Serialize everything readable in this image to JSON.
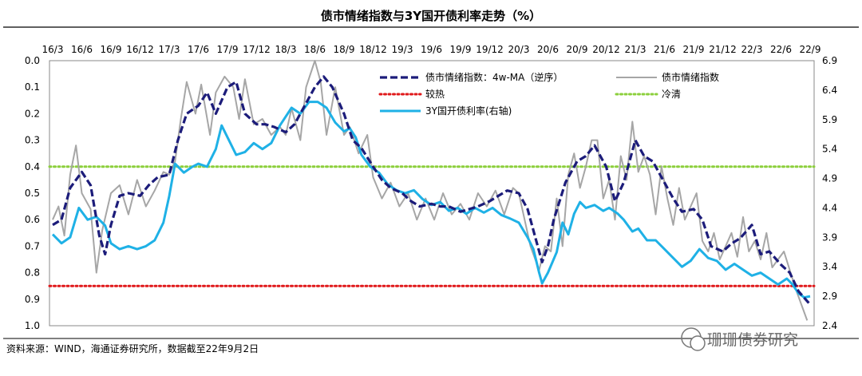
{
  "chart_data": {
    "type": "line",
    "title": "债市情绪指数与3Y国开债利率走势（%）",
    "source": "资料来源：WIND，海通证券研究所，数据截至22年9月2日",
    "watermark": "珊珊债券研究",
    "x_tick_labels": [
      "16/3",
      "16/6",
      "16/9",
      "16/12",
      "17/3",
      "17/6",
      "17/9",
      "17/12",
      "18/3",
      "18/6",
      "18/9",
      "18/12",
      "19/3",
      "19/6",
      "19/9",
      "19/12",
      "20/3",
      "20/6",
      "20/9",
      "20/12",
      "21/3",
      "21/6",
      "21/9",
      "21/12",
      "22/3",
      "22/6",
      "22/9"
    ],
    "left_axis": {
      "min": 0.0,
      "max": 1.0,
      "reversed": true,
      "tick_labels": [
        "0.0",
        "0.1",
        "0.2",
        "0.3",
        "0.4",
        "0.5",
        "0.6",
        "0.7",
        "0.8",
        "0.9",
        "1.0"
      ]
    },
    "right_axis": {
      "min": 2.4,
      "max": 6.9,
      "tick_labels": [
        "2.4",
        "2.9",
        "3.4",
        "3.9",
        "4.4",
        "4.9",
        "5.4",
        "5.9",
        "6.4",
        "6.9"
      ]
    },
    "legend": {
      "ma": "债市情绪指数：4w-MA（逆序）",
      "raw": "债市情绪指数",
      "hot": "较热",
      "cold": "冷清",
      "rate": "3Y国开债利率(右轴)"
    },
    "reference_lines": {
      "hot": 0.85,
      "cold": 0.4
    },
    "colors": {
      "ma": "#1c1c7a",
      "raw": "#a6a6a6",
      "hot": "#e0191b",
      "cold": "#8ccf3c",
      "rate": "#1fb1e6"
    },
    "series_ma": {
      "axis": "left",
      "points": [
        [
          0.0,
          0.62
        ],
        [
          0.3,
          0.6
        ],
        [
          0.6,
          0.48
        ],
        [
          1.0,
          0.42
        ],
        [
          1.3,
          0.47
        ],
        [
          1.6,
          0.66
        ],
        [
          1.8,
          0.73
        ],
        [
          2.0,
          0.62
        ],
        [
          2.3,
          0.51
        ],
        [
          2.6,
          0.5
        ],
        [
          3.0,
          0.51
        ],
        [
          3.3,
          0.47
        ],
        [
          3.6,
          0.44
        ],
        [
          4.0,
          0.43
        ],
        [
          4.3,
          0.3
        ],
        [
          4.6,
          0.2
        ],
        [
          5.0,
          0.17
        ],
        [
          5.3,
          0.12
        ],
        [
          5.6,
          0.2
        ],
        [
          6.0,
          0.1
        ],
        [
          6.3,
          0.08
        ],
        [
          6.6,
          0.2
        ],
        [
          7.0,
          0.24
        ],
        [
          7.3,
          0.24
        ],
        [
          7.6,
          0.25
        ],
        [
          8.0,
          0.27
        ],
        [
          8.3,
          0.24
        ],
        [
          8.6,
          0.18
        ],
        [
          9.0,
          0.1
        ],
        [
          9.3,
          0.06
        ],
        [
          9.6,
          0.1
        ],
        [
          10.0,
          0.2
        ],
        [
          10.3,
          0.3
        ],
        [
          10.6,
          0.33
        ],
        [
          11.0,
          0.4
        ],
        [
          11.3,
          0.45
        ],
        [
          11.6,
          0.48
        ],
        [
          12.0,
          0.5
        ],
        [
          12.3,
          0.53
        ],
        [
          12.6,
          0.55
        ],
        [
          13.0,
          0.54
        ],
        [
          13.3,
          0.55
        ],
        [
          13.6,
          0.55
        ],
        [
          14.0,
          0.57
        ],
        [
          14.3,
          0.56
        ],
        [
          14.6,
          0.55
        ],
        [
          15.0,
          0.53
        ],
        [
          15.3,
          0.51
        ],
        [
          15.6,
          0.49
        ],
        [
          16.0,
          0.5
        ],
        [
          16.3,
          0.56
        ],
        [
          16.6,
          0.68
        ],
        [
          16.8,
          0.76
        ],
        [
          17.0,
          0.7
        ],
        [
          17.2,
          0.6
        ],
        [
          17.6,
          0.46
        ],
        [
          18.0,
          0.38
        ],
        [
          18.3,
          0.36
        ],
        [
          18.6,
          0.32
        ],
        [
          19.0,
          0.4
        ],
        [
          19.3,
          0.53
        ],
        [
          19.6,
          0.46
        ],
        [
          20.0,
          0.3
        ],
        [
          20.3,
          0.36
        ],
        [
          20.6,
          0.38
        ],
        [
          21.0,
          0.46
        ],
        [
          21.3,
          0.52
        ],
        [
          21.6,
          0.57
        ],
        [
          22.0,
          0.56
        ],
        [
          22.3,
          0.6
        ],
        [
          22.6,
          0.7
        ],
        [
          23.0,
          0.72
        ],
        [
          23.3,
          0.69
        ],
        [
          23.6,
          0.67
        ],
        [
          24.0,
          0.62
        ],
        [
          24.3,
          0.73
        ],
        [
          24.6,
          0.72
        ],
        [
          25.0,
          0.77
        ],
        [
          25.3,
          0.8
        ],
        [
          25.6,
          0.87
        ],
        [
          26.0,
          0.92
        ]
      ]
    },
    "series_raw": {
      "axis": "left",
      "points": [
        [
          0.0,
          0.6
        ],
        [
          0.2,
          0.55
        ],
        [
          0.4,
          0.66
        ],
        [
          0.6,
          0.43
        ],
        [
          0.8,
          0.32
        ],
        [
          1.0,
          0.5
        ],
        [
          1.3,
          0.56
        ],
        [
          1.5,
          0.8
        ],
        [
          1.7,
          0.64
        ],
        [
          2.0,
          0.5
        ],
        [
          2.3,
          0.47
        ],
        [
          2.6,
          0.58
        ],
        [
          2.9,
          0.45
        ],
        [
          3.2,
          0.55
        ],
        [
          3.5,
          0.49
        ],
        [
          3.8,
          0.42
        ],
        [
          4.0,
          0.43
        ],
        [
          4.2,
          0.38
        ],
        [
          4.4,
          0.22
        ],
        [
          4.6,
          0.08
        ],
        [
          4.9,
          0.2
        ],
        [
          5.1,
          0.09
        ],
        [
          5.4,
          0.28
        ],
        [
          5.6,
          0.12
        ],
        [
          5.9,
          0.06
        ],
        [
          6.2,
          0.1
        ],
        [
          6.4,
          0.22
        ],
        [
          6.6,
          0.07
        ],
        [
          6.9,
          0.24
        ],
        [
          7.2,
          0.22
        ],
        [
          7.5,
          0.28
        ],
        [
          7.8,
          0.25
        ],
        [
          8.0,
          0.28
        ],
        [
          8.2,
          0.18
        ],
        [
          8.5,
          0.3
        ],
        [
          8.7,
          0.1
        ],
        [
          9.0,
          0.0
        ],
        [
          9.2,
          0.08
        ],
        [
          9.4,
          0.28
        ],
        [
          9.7,
          0.1
        ],
        [
          10.0,
          0.28
        ],
        [
          10.2,
          0.25
        ],
        [
          10.5,
          0.35
        ],
        [
          10.8,
          0.28
        ],
        [
          11.0,
          0.44
        ],
        [
          11.3,
          0.52
        ],
        [
          11.6,
          0.46
        ],
        [
          11.9,
          0.55
        ],
        [
          12.2,
          0.5
        ],
        [
          12.5,
          0.6
        ],
        [
          12.8,
          0.52
        ],
        [
          13.1,
          0.6
        ],
        [
          13.4,
          0.5
        ],
        [
          13.7,
          0.58
        ],
        [
          14.0,
          0.54
        ],
        [
          14.3,
          0.6
        ],
        [
          14.6,
          0.5
        ],
        [
          14.9,
          0.55
        ],
        [
          15.2,
          0.49
        ],
        [
          15.5,
          0.58
        ],
        [
          15.8,
          0.48
        ],
        [
          16.0,
          0.5
        ],
        [
          16.2,
          0.6
        ],
        [
          16.4,
          0.7
        ],
        [
          16.7,
          0.79
        ],
        [
          16.9,
          0.7
        ],
        [
          17.1,
          0.72
        ],
        [
          17.3,
          0.52
        ],
        [
          17.5,
          0.7
        ],
        [
          17.7,
          0.43
        ],
        [
          17.9,
          0.35
        ],
        [
          18.1,
          0.48
        ],
        [
          18.3,
          0.4
        ],
        [
          18.5,
          0.3
        ],
        [
          18.7,
          0.3
        ],
        [
          18.9,
          0.52
        ],
        [
          19.1,
          0.45
        ],
        [
          19.3,
          0.6
        ],
        [
          19.5,
          0.36
        ],
        [
          19.7,
          0.45
        ],
        [
          19.9,
          0.23
        ],
        [
          20.1,
          0.42
        ],
        [
          20.3,
          0.36
        ],
        [
          20.5,
          0.43
        ],
        [
          20.7,
          0.58
        ],
        [
          20.9,
          0.4
        ],
        [
          21.1,
          0.52
        ],
        [
          21.3,
          0.62
        ],
        [
          21.5,
          0.48
        ],
        [
          21.7,
          0.6
        ],
        [
          21.9,
          0.55
        ],
        [
          22.1,
          0.5
        ],
        [
          22.3,
          0.68
        ],
        [
          22.5,
          0.72
        ],
        [
          22.7,
          0.65
        ],
        [
          22.9,
          0.75
        ],
        [
          23.1,
          0.7
        ],
        [
          23.3,
          0.65
        ],
        [
          23.5,
          0.74
        ],
        [
          23.7,
          0.59
        ],
        [
          23.9,
          0.72
        ],
        [
          24.1,
          0.68
        ],
        [
          24.3,
          0.75
        ],
        [
          24.5,
          0.65
        ],
        [
          24.7,
          0.78
        ],
        [
          24.9,
          0.75
        ],
        [
          25.1,
          0.72
        ],
        [
          25.3,
          0.79
        ],
        [
          25.5,
          0.86
        ],
        [
          25.7,
          0.92
        ],
        [
          25.9,
          0.98
        ]
      ]
    },
    "series_rate": {
      "axis": "right",
      "points": [
        [
          0.0,
          3.95
        ],
        [
          0.3,
          3.8
        ],
        [
          0.6,
          3.9
        ],
        [
          0.9,
          4.4
        ],
        [
          1.2,
          4.2
        ],
        [
          1.5,
          4.25
        ],
        [
          1.8,
          4.1
        ],
        [
          2.0,
          3.8
        ],
        [
          2.3,
          3.7
        ],
        [
          2.6,
          3.75
        ],
        [
          2.9,
          3.7
        ],
        [
          3.2,
          3.75
        ],
        [
          3.5,
          3.85
        ],
        [
          3.8,
          4.15
        ],
        [
          4.0,
          4.6
        ],
        [
          4.2,
          5.15
        ],
        [
          4.5,
          5.0
        ],
        [
          4.8,
          5.1
        ],
        [
          5.0,
          5.15
        ],
        [
          5.3,
          5.1
        ],
        [
          5.6,
          5.4
        ],
        [
          5.8,
          5.8
        ],
        [
          6.0,
          5.6
        ],
        [
          6.3,
          5.3
        ],
        [
          6.6,
          5.35
        ],
        [
          6.9,
          5.5
        ],
        [
          7.2,
          5.4
        ],
        [
          7.5,
          5.5
        ],
        [
          7.8,
          5.8
        ],
        [
          8.0,
          5.95
        ],
        [
          8.2,
          6.1
        ],
        [
          8.5,
          6.0
        ],
        [
          8.8,
          6.2
        ],
        [
          9.1,
          6.2
        ],
        [
          9.4,
          6.1
        ],
        [
          9.7,
          5.85
        ],
        [
          10.0,
          5.7
        ],
        [
          10.2,
          5.75
        ],
        [
          10.4,
          5.6
        ],
        [
          10.6,
          5.3
        ],
        [
          10.9,
          5.1
        ],
        [
          11.2,
          5.0
        ],
        [
          11.5,
          4.8
        ],
        [
          11.8,
          4.7
        ],
        [
          12.1,
          4.65
        ],
        [
          12.4,
          4.7
        ],
        [
          12.7,
          4.55
        ],
        [
          13.0,
          4.45
        ],
        [
          13.3,
          4.5
        ],
        [
          13.6,
          4.35
        ],
        [
          13.9,
          4.4
        ],
        [
          14.2,
          4.3
        ],
        [
          14.5,
          4.4
        ],
        [
          14.8,
          4.32
        ],
        [
          15.1,
          4.4
        ],
        [
          15.4,
          4.28
        ],
        [
          15.7,
          4.22
        ],
        [
          16.0,
          4.15
        ],
        [
          16.3,
          3.9
        ],
        [
          16.5,
          3.7
        ],
        [
          16.7,
          3.3
        ],
        [
          16.8,
          3.12
        ],
        [
          17.0,
          3.3
        ],
        [
          17.3,
          3.65
        ],
        [
          17.5,
          4.15
        ],
        [
          17.7,
          3.95
        ],
        [
          17.9,
          4.3
        ],
        [
          18.1,
          4.5
        ],
        [
          18.3,
          4.4
        ],
        [
          18.6,
          4.45
        ],
        [
          18.9,
          4.35
        ],
        [
          19.1,
          4.4
        ],
        [
          19.4,
          4.3
        ],
        [
          19.6,
          4.2
        ],
        [
          19.9,
          4.0
        ],
        [
          20.1,
          4.05
        ],
        [
          20.4,
          3.85
        ],
        [
          20.7,
          3.85
        ],
        [
          21.0,
          3.7
        ],
        [
          21.3,
          3.55
        ],
        [
          21.6,
          3.4
        ],
        [
          21.9,
          3.5
        ],
        [
          22.2,
          3.7
        ],
        [
          22.5,
          3.55
        ],
        [
          22.8,
          3.5
        ],
        [
          23.1,
          3.35
        ],
        [
          23.4,
          3.45
        ],
        [
          23.7,
          3.35
        ],
        [
          24.0,
          3.25
        ],
        [
          24.3,
          3.3
        ],
        [
          24.6,
          3.2
        ],
        [
          24.9,
          3.1
        ],
        [
          25.2,
          3.2
        ],
        [
          25.4,
          3.1
        ],
        [
          25.6,
          2.95
        ],
        [
          25.8,
          2.88
        ],
        [
          26.0,
          2.9
        ]
      ]
    }
  }
}
